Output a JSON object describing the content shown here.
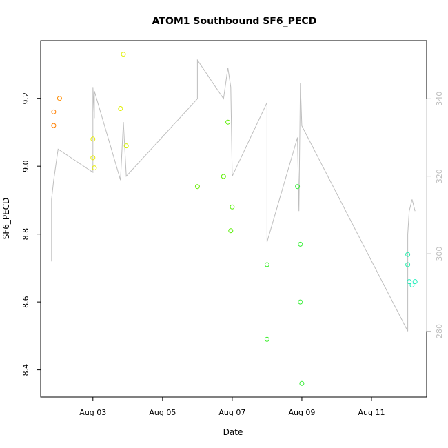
{
  "chart_data": {
    "type": "scatter",
    "title": "ATOM1 Southbound SF6_PECD",
    "xlabel": "Date",
    "ylabel": "SF6_PECD",
    "xlim": [
      "2022-08-01T12:00",
      "2022-08-12T14:00"
    ],
    "ylim": [
      8.32,
      9.37
    ],
    "y2lim": [
      263,
      355
    ],
    "x_ticks": [
      {
        "label": "Aug 03",
        "date": "2022-08-03T00:00"
      },
      {
        "label": "Aug 05",
        "date": "2022-08-05T00:00"
      },
      {
        "label": "Aug 07",
        "date": "2022-08-07T00:00"
      },
      {
        "label": "Aug 09",
        "date": "2022-08-09T00:00"
      },
      {
        "label": "Aug 11",
        "date": "2022-08-11T00:00"
      }
    ],
    "y_ticks": [
      8.4,
      8.6,
      8.8,
      9.0,
      9.2
    ],
    "y2_ticks": [
      280,
      300,
      320,
      340
    ],
    "grid": false,
    "points": [
      {
        "x": "2022-08-01T21:00",
        "y": 9.16,
        "color": "#ff7f00"
      },
      {
        "x": "2022-08-01T21:00",
        "y": 9.12,
        "color": "#ff7f00"
      },
      {
        "x": "2022-08-02T01:00",
        "y": 9.2,
        "color": "#ff8c00"
      },
      {
        "x": "2022-08-03T00:00",
        "y": 9.08,
        "color": "#e8ee00"
      },
      {
        "x": "2022-08-03T00:00",
        "y": 9.025,
        "color": "#e8ee00"
      },
      {
        "x": "2022-08-03T01:00",
        "y": 8.995,
        "color": "#e8ee00"
      },
      {
        "x": "2022-08-03T19:00",
        "y": 9.17,
        "color": "#dfee00"
      },
      {
        "x": "2022-08-03T21:00",
        "y": 9.33,
        "color": "#dfee00"
      },
      {
        "x": "2022-08-03T23:00",
        "y": 9.06,
        "color": "#d5ee00"
      },
      {
        "x": "2022-08-06T00:00",
        "y": 8.94,
        "color": "#66ee00"
      },
      {
        "x": "2022-08-06T18:00",
        "y": 8.97,
        "color": "#5cee00"
      },
      {
        "x": "2022-08-06T21:00",
        "y": 9.13,
        "color": "#5cee00"
      },
      {
        "x": "2022-08-06T23:00",
        "y": 8.81,
        "color": "#55ee00"
      },
      {
        "x": "2022-08-07T00:00",
        "y": 8.88,
        "color": "#55ee00"
      },
      {
        "x": "2022-08-08T00:00",
        "y": 8.71,
        "color": "#33ee22"
      },
      {
        "x": "2022-08-08T00:00",
        "y": 8.49,
        "color": "#33ee22"
      },
      {
        "x": "2022-08-08T21:00",
        "y": 8.94,
        "color": "#33ee33"
      },
      {
        "x": "2022-08-08T23:00",
        "y": 8.77,
        "color": "#33ee33"
      },
      {
        "x": "2022-08-08T23:00",
        "y": 8.6,
        "color": "#33ee33"
      },
      {
        "x": "2022-08-09T00:00",
        "y": 8.36,
        "color": "#33ee33"
      },
      {
        "x": "2022-08-12T01:00",
        "y": 8.74,
        "color": "#22eeaa"
      },
      {
        "x": "2022-08-12T01:00",
        "y": 8.71,
        "color": "#22eeaa"
      },
      {
        "x": "2022-08-12T02:00",
        "y": 8.66,
        "color": "#22eebb"
      },
      {
        "x": "2022-08-12T04:00",
        "y": 8.65,
        "color": "#22eebb"
      },
      {
        "x": "2022-08-12T06:00",
        "y": 8.66,
        "color": "#22eebb"
      }
    ],
    "secondary_series": {
      "color": "#bebebe",
      "points": [
        {
          "x": "2022-08-01T19:30",
          "y": 298
        },
        {
          "x": "2022-08-01T19:30",
          "y": 314
        },
        {
          "x": "2022-08-01T21:00",
          "y": 319
        },
        {
          "x": "2022-08-02T00:00",
          "y": 327
        },
        {
          "x": "2022-08-03T00:00",
          "y": 321
        },
        {
          "x": "2022-08-03T00:00",
          "y": 343
        },
        {
          "x": "2022-08-03T01:00",
          "y": 335
        },
        {
          "x": "2022-08-03T01:00",
          "y": 342
        },
        {
          "x": "2022-08-03T19:00",
          "y": 319
        },
        {
          "x": "2022-08-03T21:00",
          "y": 334
        },
        {
          "x": "2022-08-03T23:00",
          "y": 320
        },
        {
          "x": "2022-08-06T00:00",
          "y": 340
        },
        {
          "x": "2022-08-06T00:00",
          "y": 350
        },
        {
          "x": "2022-08-06T18:00",
          "y": 340
        },
        {
          "x": "2022-08-06T21:00",
          "y": 348
        },
        {
          "x": "2022-08-06T23:00",
          "y": 343
        },
        {
          "x": "2022-08-07T00:00",
          "y": 320
        },
        {
          "x": "2022-08-08T00:00",
          "y": 339
        },
        {
          "x": "2022-08-08T00:00",
          "y": 303
        },
        {
          "x": "2022-08-08T21:00",
          "y": 330
        },
        {
          "x": "2022-08-08T22:00",
          "y": 311
        },
        {
          "x": "2022-08-08T23:00",
          "y": 344
        },
        {
          "x": "2022-08-09T00:00",
          "y": 333
        },
        {
          "x": "2022-08-12T01:00",
          "y": 280
        },
        {
          "x": "2022-08-12T01:00",
          "y": 305
        },
        {
          "x": "2022-08-12T02:00",
          "y": 311
        },
        {
          "x": "2022-08-12T04:00",
          "y": 314
        },
        {
          "x": "2022-08-12T06:00",
          "y": 311
        }
      ]
    }
  }
}
